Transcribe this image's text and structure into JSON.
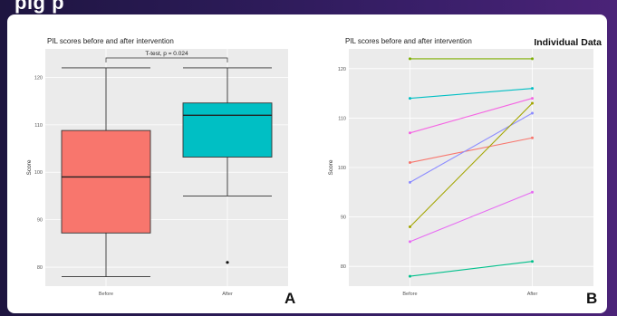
{
  "header_fragment": "pig  p",
  "chart_data": [
    {
      "panel": "A",
      "type": "box",
      "title": "PIL scores before and after intervention",
      "xlabel": "",
      "ylabel": "Score",
      "categories": [
        "Before",
        "After"
      ],
      "ylim": [
        76,
        126
      ],
      "yticks": [
        80,
        90,
        100,
        110,
        120
      ],
      "boxes": [
        {
          "category": "Before",
          "min": 78,
          "q1": 87.2,
          "median": 99,
          "q3": 108.8,
          "max": 122,
          "outliers": [],
          "color": "#f8766d"
        },
        {
          "category": "After",
          "min": 95,
          "q1": 103.2,
          "median": 112,
          "q3": 114.6,
          "max": 122,
          "outliers": [
            81
          ],
          "color": "#00bfc4"
        }
      ],
      "annotation": "T-test, p = 0.024",
      "grid": true,
      "background": "#ebebeb"
    },
    {
      "panel": "B",
      "type": "line",
      "title": "PIL scores before and after intervention",
      "heading": "Individual Data",
      "xlabel": "",
      "ylabel": "Score",
      "categories": [
        "Before",
        "After"
      ],
      "ylim": [
        76,
        124
      ],
      "yticks": [
        80,
        90,
        100,
        110,
        120
      ],
      "series": [
        {
          "values": [
            122,
            122
          ],
          "color": "#7cae00"
        },
        {
          "values": [
            114,
            116
          ],
          "color": "#00bfc4"
        },
        {
          "values": [
            107,
            114
          ],
          "color": "#f564e3"
        },
        {
          "values": [
            101,
            106
          ],
          "color": "#f8766d"
        },
        {
          "values": [
            97,
            111
          ],
          "color": "#8c8cff"
        },
        {
          "values": [
            88,
            113
          ],
          "color": "#a3a500"
        },
        {
          "values": [
            85,
            95
          ],
          "color": "#e76bf3"
        },
        {
          "values": [
            78,
            81
          ],
          "color": "#00c08b"
        }
      ],
      "grid": true,
      "background": "#ebebeb"
    }
  ],
  "labels": {
    "panel_a": "A",
    "panel_b": "B"
  }
}
